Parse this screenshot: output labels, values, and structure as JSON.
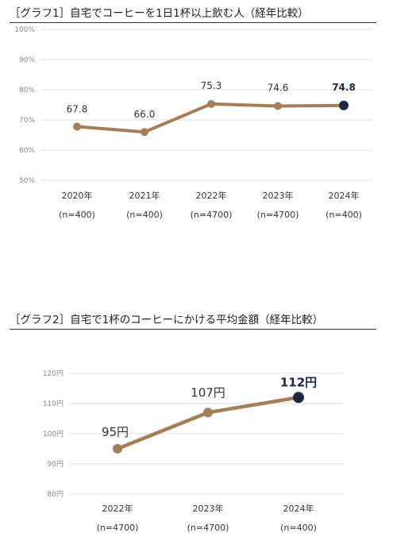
{
  "chart_data": [
    {
      "type": "line",
      "title": "［グラフ1］自宅でコーヒーを1日1杯以上飲む人（経年比較）",
      "categories": [
        "2020年",
        "2021年",
        "2022年",
        "2023年",
        "2024年"
      ],
      "sublabels": [
        "(n=400)",
        "(n=400)",
        "(n=4700)",
        "(n=4700)",
        "(n=400)"
      ],
      "values": [
        67.8,
        66.0,
        75.3,
        74.6,
        74.8
      ],
      "value_labels": [
        "67.8",
        "66.0",
        "75.3",
        "74.6",
        "74.8"
      ],
      "y_ticks": [
        "100%",
        "90%",
        "80%",
        "70%",
        "60%",
        "50%"
      ],
      "ylim": [
        50,
        100
      ],
      "highlight_index": 4,
      "grid": true,
      "line_color": "#a47e58",
      "highlight_color": "#1b2a44"
    },
    {
      "type": "line",
      "title": "［グラフ2］自宅で1杯のコーヒーにかける平均金額（経年比較）",
      "categories": [
        "2022年",
        "2023年",
        "2024年"
      ],
      "sublabels": [
        "(n=4700)",
        "(n=4700)",
        "(n=400)"
      ],
      "values": [
        95,
        107,
        112
      ],
      "value_labels": [
        "95円",
        "107円",
        "112円"
      ],
      "y_ticks": [
        "120円",
        "110円",
        "100円",
        "90円",
        "80円"
      ],
      "ylim": [
        80,
        120
      ],
      "highlight_index": 2,
      "grid": true,
      "line_color": "#a47e58",
      "highlight_color": "#1b2a44"
    }
  ]
}
